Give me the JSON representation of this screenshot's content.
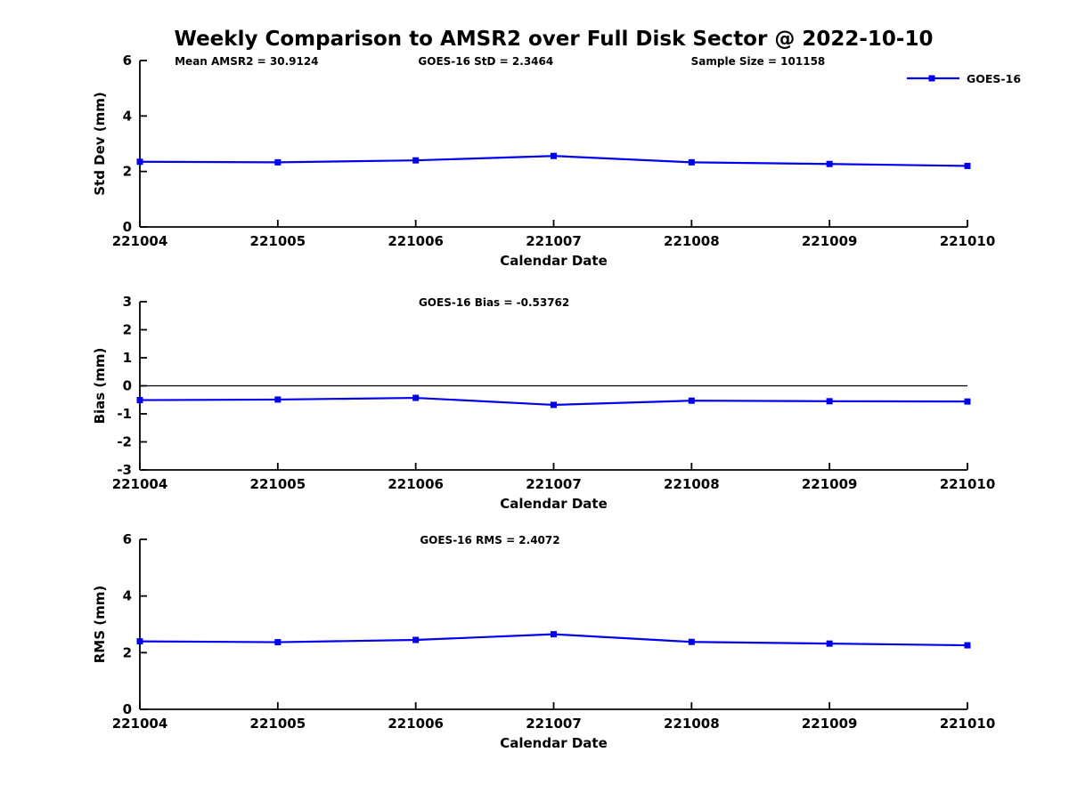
{
  "title": "Weekly Comparison to AMSR2 over Full Disk Sector @ 2022-10-10",
  "colors": {
    "series": "#0000EE",
    "axis": "#000000",
    "text": "#000000",
    "background": "#FFFFFF",
    "zero_line": "#000000"
  },
  "legend": {
    "label": "GOES-16",
    "position": "top-right"
  },
  "chart_data": [
    {
      "type": "line",
      "panel": "std-dev",
      "annotations": [
        "Mean AMSR2 = 30.9124",
        "GOES-16 StD = 2.3464",
        "Sample Size = 101158"
      ],
      "x": [
        221004,
        221005,
        221006,
        221007,
        221008,
        221009,
        221010
      ],
      "series": [
        {
          "name": "GOES-16",
          "values": [
            2.35,
            2.33,
            2.4,
            2.56,
            2.33,
            2.27,
            2.2
          ]
        }
      ],
      "xlabel": "Calendar Date",
      "ylabel": "Std Dev (mm)",
      "ylim": [
        0,
        6
      ],
      "yticks": [
        0,
        2,
        4,
        6
      ],
      "zero_line": false,
      "grid": false,
      "marker": "square"
    },
    {
      "type": "line",
      "panel": "bias",
      "annotations": [
        "GOES-16 Bias  = -0.53762"
      ],
      "x": [
        221004,
        221005,
        221006,
        221007,
        221008,
        221009,
        221010
      ],
      "series": [
        {
          "name": "GOES-16",
          "values": [
            -0.51,
            -0.49,
            -0.43,
            -0.68,
            -0.53,
            -0.55,
            -0.56
          ]
        }
      ],
      "xlabel": "Calendar Date",
      "ylabel": "Bias (mm)",
      "ylim": [
        -3,
        3
      ],
      "yticks": [
        -3,
        -2,
        -1,
        0,
        1,
        2,
        3
      ],
      "zero_line": true,
      "grid": false,
      "marker": "square"
    },
    {
      "type": "line",
      "panel": "rms",
      "annotations": [
        "GOES-16 RMS = 2.4072"
      ],
      "x": [
        221004,
        221005,
        221006,
        221007,
        221008,
        221009,
        221010
      ],
      "series": [
        {
          "name": "GOES-16",
          "values": [
            2.4,
            2.37,
            2.45,
            2.65,
            2.38,
            2.32,
            2.26
          ]
        }
      ],
      "xlabel": "Calendar Date",
      "ylabel": "RMS (mm)",
      "ylim": [
        0,
        6
      ],
      "yticks": [
        0,
        2,
        4,
        6
      ],
      "zero_line": false,
      "grid": false,
      "marker": "square"
    }
  ]
}
